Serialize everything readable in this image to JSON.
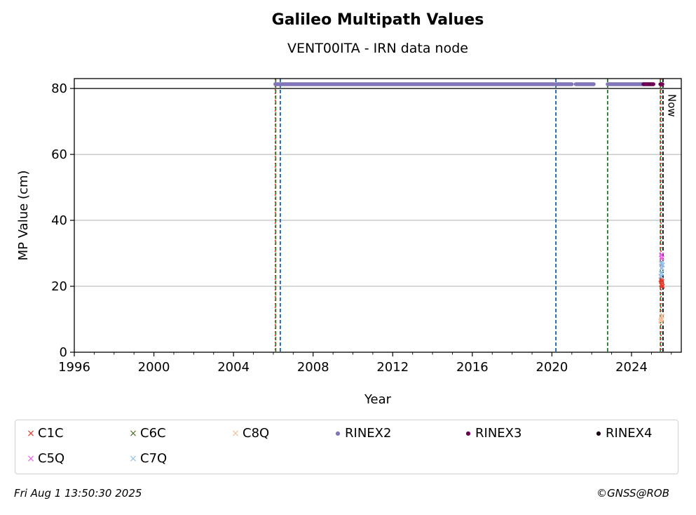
{
  "title": "Galileo Multipath Values",
  "subtitle": "VENT00ITA - IRN data node",
  "footer": {
    "timestamp": "Fri Aug  1 13:50:30 2025",
    "credit": "©GNSS@ROB"
  },
  "now_label": "Now",
  "chart_data": {
    "type": "scatter",
    "xlabel": "Year",
    "ylabel": "MP Value (cm)",
    "xlim": [
      1996,
      2026.5
    ],
    "ylim": [
      0,
      83
    ],
    "x_ticks": [
      "1996",
      "2000",
      "2004",
      "2008",
      "2012",
      "2016",
      "2020",
      "2024"
    ],
    "y_ticks": [
      "0",
      "20",
      "40",
      "60",
      "80"
    ],
    "grid": "horizontal",
    "reference_line_y": 80,
    "legend_placement": "below",
    "series": [
      {
        "name": "C1C",
        "marker": "x",
        "color": "#e8372b",
        "points": [
          [
            2025.5,
            20.5
          ],
          [
            2025.52,
            21.5
          ],
          [
            2025.48,
            22.0
          ],
          [
            2025.55,
            20.0
          ]
        ]
      },
      {
        "name": "C6C",
        "marker": "x",
        "color": "#4c6e2a",
        "points": []
      },
      {
        "name": "C8Q",
        "marker": "x",
        "color": "#f5c09a",
        "points": [
          [
            2025.5,
            10.0
          ],
          [
            2025.53,
            11.0
          ],
          [
            2025.47,
            9.5
          ]
        ]
      },
      {
        "name": "RINEX2",
        "marker": "o",
        "color": "#8076b8",
        "segments": [
          [
            2006.1,
            2020.1
          ],
          [
            2020.2,
            2021.0
          ],
          [
            2021.2,
            2022.1
          ],
          [
            2022.8,
            2024.6
          ]
        ],
        "y": 81.3
      },
      {
        "name": "RINEX3",
        "marker": "o",
        "color": "#6b0050",
        "segments": [
          [
            2024.6,
            2025.1
          ],
          [
            2025.45,
            2025.55
          ]
        ],
        "y": 81.3
      },
      {
        "name": "RINEX4",
        "marker": "o",
        "color": "#1a0014",
        "segments": [],
        "y": 81.3
      },
      {
        "name": "C5Q",
        "marker": "x",
        "color": "#f060f0",
        "points": [
          [
            2025.5,
            29.5
          ],
          [
            2025.52,
            28.5
          ]
        ]
      },
      {
        "name": "C7Q",
        "marker": "x",
        "color": "#90c0e8",
        "points": [
          [
            2025.5,
            24.0
          ],
          [
            2025.52,
            25.5
          ],
          [
            2025.48,
            23.0
          ],
          [
            2025.55,
            26.5
          ],
          [
            2025.5,
            27.0
          ]
        ]
      }
    ],
    "vertical_lines": [
      {
        "x": 2006.1,
        "color": "#e8372b",
        "style": "dotted"
      },
      {
        "x": 2006.12,
        "color": "#2a7a2a",
        "style": "dashed"
      },
      {
        "x": 2006.35,
        "color": "#1060b0",
        "style": "dashed"
      },
      {
        "x": 2020.2,
        "color": "#1060b0",
        "style": "dashed"
      },
      {
        "x": 2022.8,
        "color": "#2a7a2a",
        "style": "dashed"
      },
      {
        "x": 2025.45,
        "color": "#2a7a2a",
        "style": "dashed"
      },
      {
        "x": 2025.48,
        "color": "#e8372b",
        "style": "dotted"
      },
      {
        "x": 2025.58,
        "color": "#000000",
        "style": "dashed"
      }
    ]
  },
  "legend": [
    {
      "label": "C1C",
      "color": "#e8372b",
      "marker": "x"
    },
    {
      "label": "C6C",
      "color": "#4c6e2a",
      "marker": "x"
    },
    {
      "label": "C8Q",
      "color": "#f5c09a",
      "marker": "x"
    },
    {
      "label": "RINEX2",
      "color": "#8076b8",
      "marker": "o"
    },
    {
      "label": "RINEX3",
      "color": "#6b0050",
      "marker": "o"
    },
    {
      "label": "RINEX4",
      "color": "#1a0014",
      "marker": "o"
    },
    {
      "label": "C5Q",
      "color": "#f060f0",
      "marker": "x"
    },
    {
      "label": "C7Q",
      "color": "#90c0e8",
      "marker": "x"
    }
  ]
}
